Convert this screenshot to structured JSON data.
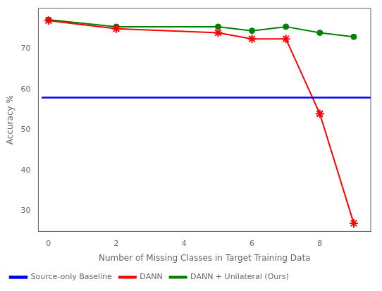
{
  "chart_data": {
    "type": "line",
    "xlabel": "Number of Missing Classes in Target Training Data",
    "ylabel": "Accuracy %",
    "series": [
      {
        "name": "Source-only Baseline",
        "color": "blue",
        "x": [
          -0.2,
          9.5
        ],
        "values": [
          58.0,
          58.0
        ]
      },
      {
        "name": "DANN",
        "color": "red",
        "marker": "star",
        "x": [
          0,
          2,
          5,
          6,
          7,
          8,
          9
        ],
        "values": [
          77.0,
          75.0,
          74.0,
          72.5,
          72.5,
          54.0,
          27.0
        ]
      },
      {
        "name": "DANN + Unilateral (Ours)",
        "color": "green",
        "marker": "circle",
        "x": [
          0,
          2,
          5,
          6,
          7,
          8,
          9
        ],
        "values": [
          77.2,
          75.5,
          75.5,
          74.5,
          75.5,
          74.0,
          73.0
        ]
      }
    ],
    "xlim": [
      -0.3,
      9.5
    ],
    "ylim": [
      25,
      80
    ],
    "xticks": [
      0,
      2,
      4,
      6,
      8
    ],
    "yticks": [
      30,
      40,
      50,
      60,
      70
    ],
    "grid": false,
    "legend": "lower left"
  }
}
